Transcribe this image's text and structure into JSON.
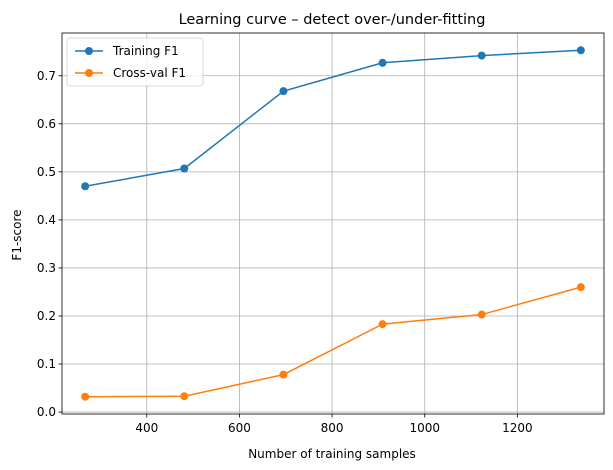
{
  "chart_data": {
    "type": "line",
    "title": "Learning curve – detect over-/under-fitting",
    "xlabel": "Number of training samples",
    "ylabel": "F1-score",
    "x": [
      267,
      481,
      695,
      909,
      1123,
      1337
    ],
    "series": [
      {
        "name": "Training F1",
        "color": "#1f77b4",
        "values": [
          0.47,
          0.507,
          0.668,
          0.727,
          0.742,
          0.753
        ]
      },
      {
        "name": "Cross-val F1",
        "color": "#ff7f0e",
        "values": [
          0.032,
          0.033,
          0.078,
          0.183,
          0.203,
          0.26
        ]
      }
    ],
    "xlim": [
      217,
      1387
    ],
    "ylim": [
      -0.004,
      0.789
    ],
    "x_ticks": [
      400,
      600,
      800,
      1000,
      1200
    ],
    "y_ticks": [
      0.0,
      0.1,
      0.2,
      0.3,
      0.4,
      0.5,
      0.6,
      0.7
    ],
    "x_tick_labels": [
      "400",
      "600",
      "800",
      "1000",
      "1200"
    ],
    "y_tick_labels": [
      "0.0",
      "0.1",
      "0.2",
      "0.3",
      "0.4",
      "0.5",
      "0.6",
      "0.7"
    ],
    "grid": true,
    "legend_position": "top-left",
    "marker": "circle"
  }
}
